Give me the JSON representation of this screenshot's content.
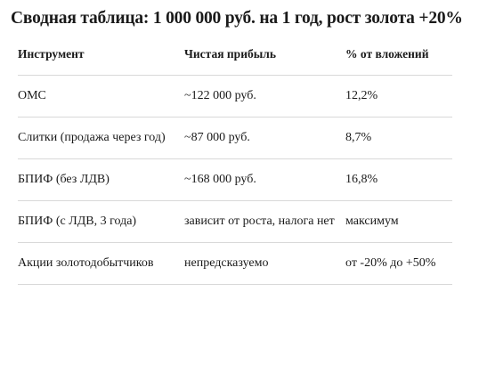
{
  "title": "Сводная таблица: 1 000 000 руб. на 1 год, рост золота +20%",
  "table": {
    "header": [
      "Инструмент",
      "Чистая прибыль",
      "% от вложений"
    ],
    "rows": [
      [
        "ОМС",
        "~122 000 руб.",
        "12,2%"
      ],
      [
        "Слитки (продажа через год)",
        "~87 000 руб.",
        "8,7%"
      ],
      [
        "БПИФ (без ЛДВ)",
        "~168 000 руб.",
        "16,8%"
      ],
      [
        "БПИФ (с ЛДВ, 3 года)",
        "зависит от роста, налога нет",
        "максимум"
      ],
      [
        "Акции золотодобытчиков",
        "непредсказуемо",
        "от -20% до +50%"
      ]
    ]
  }
}
